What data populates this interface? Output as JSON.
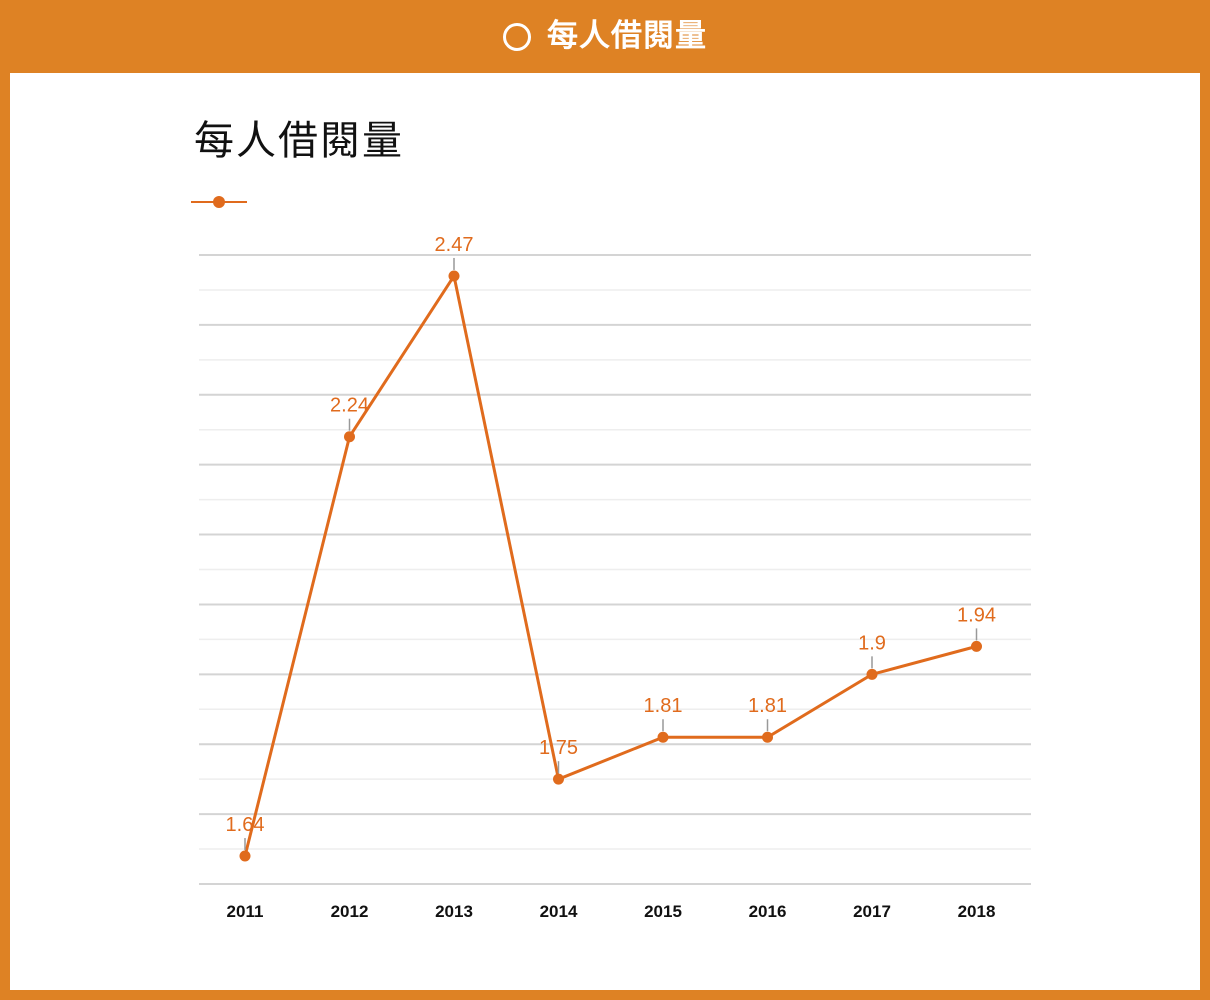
{
  "page": {
    "header_title": "每人借閱量"
  },
  "chart_data": {
    "type": "line",
    "title": "每人借閱量",
    "categories": [
      "2011",
      "2012",
      "2013",
      "2014",
      "2015",
      "2016",
      "2017",
      "2018"
    ],
    "values": [
      1.64,
      2.24,
      2.47,
      1.75,
      1.81,
      1.81,
      1.9,
      1.94
    ],
    "series": [
      {
        "values": [
          1.64,
          2.24,
          2.47,
          1.75,
          1.81,
          1.81,
          1.9,
          1.94
        ],
        "color": "#e06b1d"
      }
    ],
    "data_labels": [
      "1.64",
      "2.24",
      "2.47",
      "1.75",
      "1.81",
      "1.81",
      "1.9",
      "1.94"
    ],
    "ylim": [
      1.6,
      2.5
    ],
    "grid": true,
    "legend_position": "top-left",
    "colors": {
      "frame": "#de8224",
      "line": "#e06b1d",
      "grid_major": "#d4d4d4",
      "grid_minor": "#eeeeee",
      "leader": "#999999",
      "text": "#111111"
    }
  }
}
